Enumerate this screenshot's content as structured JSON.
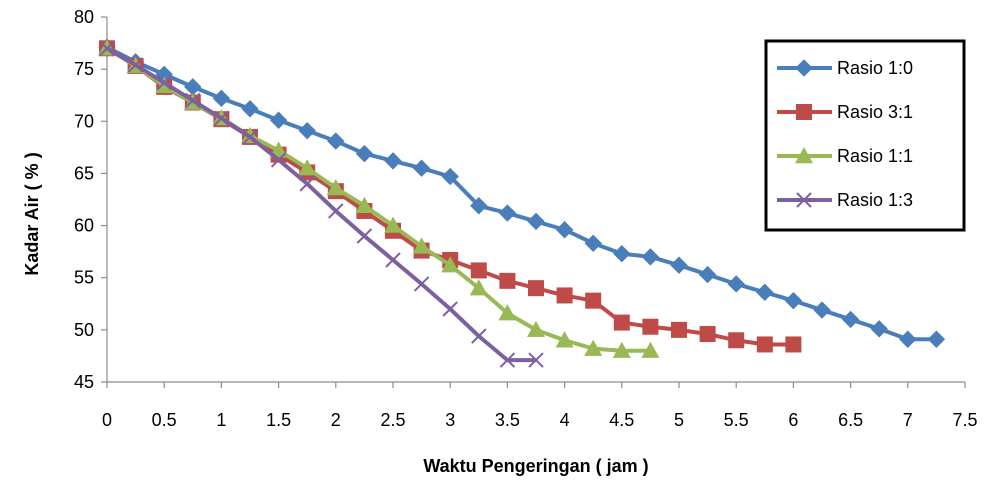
{
  "chart_data": {
    "type": "line",
    "title": "",
    "xlabel": "Waktu Pengeringan ( jam )",
    "ylabel": "Kadar Air ( % )",
    "xlim": [
      0,
      7.5
    ],
    "ylim": [
      45,
      80
    ],
    "xticks": [
      0,
      0.5,
      1,
      1.5,
      2,
      2.5,
      3,
      3.5,
      4,
      4.5,
      5,
      5.5,
      6,
      6.5,
      7,
      7.5
    ],
    "yticks": [
      45,
      50,
      55,
      60,
      65,
      70,
      75,
      80
    ],
    "grid": false,
    "legend_position": "top-right",
    "series": [
      {
        "name": "Rasio 1:0",
        "color": "#4a7ebb",
        "marker": "diamond",
        "x": [
          0,
          0.25,
          0.5,
          0.75,
          1,
          1.25,
          1.5,
          1.75,
          2,
          2.25,
          2.5,
          2.75,
          3,
          3.25,
          3.5,
          3.75,
          4,
          4.25,
          4.5,
          4.75,
          5,
          5.25,
          5.5,
          5.75,
          6,
          6.25,
          6.5,
          6.75,
          7,
          7.25
        ],
        "y": [
          77.1,
          75.7,
          74.5,
          73.3,
          72.2,
          71.2,
          70.1,
          69.1,
          68.1,
          66.9,
          66.2,
          65.5,
          64.7,
          61.9,
          61.2,
          60.4,
          59.6,
          58.3,
          57.3,
          57.0,
          56.2,
          55.3,
          54.4,
          53.6,
          52.8,
          51.9,
          51.0,
          50.1,
          49.1,
          49.1
        ]
      },
      {
        "name": "Rasio 3:1",
        "color": "#be4b48",
        "marker": "square",
        "x": [
          0,
          0.25,
          0.5,
          0.75,
          1,
          1.25,
          1.5,
          1.75,
          2,
          2.25,
          2.5,
          2.75,
          3,
          3.25,
          3.5,
          3.75,
          4,
          4.25,
          4.5,
          4.75,
          5,
          5.25,
          5.5,
          5.75,
          6
        ],
        "y": [
          77.0,
          75.3,
          73.3,
          71.8,
          70.2,
          68.5,
          66.8,
          65.1,
          63.3,
          61.4,
          59.5,
          57.6,
          56.7,
          55.7,
          54.7,
          54.0,
          53.3,
          52.8,
          50.7,
          50.3,
          50.0,
          49.6,
          49.0,
          48.6,
          48.6
        ]
      },
      {
        "name": "Rasio 1:1",
        "color": "#98b954",
        "marker": "triangle",
        "x": [
          0,
          0.25,
          0.5,
          0.75,
          1,
          1.25,
          1.5,
          1.75,
          2,
          2.25,
          2.5,
          2.75,
          3,
          3.25,
          3.5,
          3.75,
          4,
          4.25,
          4.5,
          4.75
        ],
        "y": [
          77.0,
          75.3,
          73.4,
          71.8,
          70.3,
          68.6,
          67.2,
          65.5,
          63.6,
          61.9,
          60.0,
          58.0,
          56.2,
          54.0,
          51.6,
          50.0,
          49.0,
          48.2,
          48.0,
          48.0
        ]
      },
      {
        "name": "Rasio 1:3",
        "color": "#7d60a0",
        "marker": "x",
        "x": [
          0,
          0.25,
          0.5,
          0.75,
          1,
          1.25,
          1.5,
          1.75,
          2,
          2.25,
          2.5,
          2.75,
          3,
          3.25,
          3.5,
          3.75
        ],
        "y": [
          77.0,
          75.4,
          73.7,
          72.0,
          70.3,
          68.5,
          66.3,
          64.0,
          61.4,
          59.0,
          56.7,
          54.4,
          52.0,
          49.4,
          47.1,
          47.1
        ]
      }
    ]
  }
}
